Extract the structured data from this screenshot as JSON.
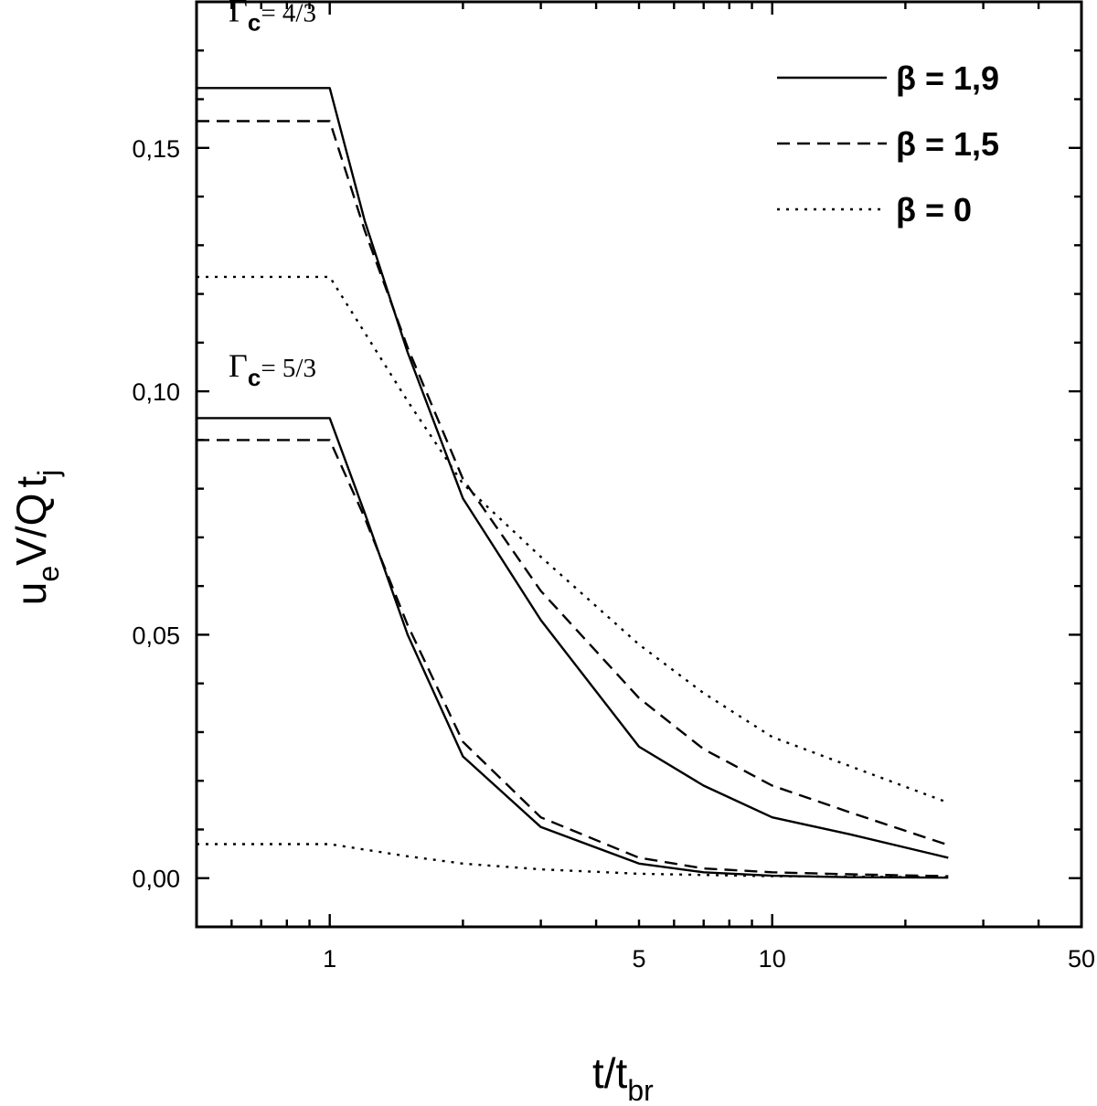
{
  "chart_data": {
    "type": "line",
    "xscale": "log",
    "xlim": [
      0.5,
      50
    ],
    "ylim": [
      -0.01,
      0.18
    ],
    "grid": false,
    "legend_position": "top-right",
    "xlabel": {
      "main": "t/t",
      "sub": "br"
    },
    "ylabel": {
      "p1": "u",
      "s1": "e",
      "p2": "V/Q",
      "p3": "t",
      "s2": "j"
    },
    "x_ticks": [
      {
        "value": 1,
        "label": "1"
      },
      {
        "value": 5,
        "label": "5"
      },
      {
        "value": 10,
        "label": "10"
      },
      {
        "value": 50,
        "label": "50"
      }
    ],
    "y_ticks": [
      {
        "value": 0,
        "label": "0,00"
      },
      {
        "value": 0.05,
        "label": "0,05"
      },
      {
        "value": 0.1,
        "label": "0,10"
      },
      {
        "value": 0.15,
        "label": "0,15"
      }
    ],
    "legend": [
      {
        "label": "β = 1,9",
        "style": "solid"
      },
      {
        "label": "β = 1,5",
        "style": "dashed"
      },
      {
        "label": "β = 0",
        "style": "dotted"
      }
    ],
    "annotations": [
      {
        "gamma": "Γ",
        "sub": "c",
        "value": "= 4/3",
        "at": [
          0.55,
          0.176
        ]
      },
      {
        "gamma": "Γ",
        "sub": "c",
        "value": "= 5/3",
        "at": [
          0.55,
          0.103
        ]
      }
    ],
    "series": [
      {
        "group": "4/3",
        "style": "solid",
        "x": [
          0.5,
          1,
          1.2,
          1.5,
          2,
          3,
          5,
          7,
          10,
          15,
          25
        ],
        "y": [
          0.1623,
          0.1623,
          0.135,
          0.108,
          0.078,
          0.053,
          0.027,
          0.019,
          0.0125,
          0.009,
          0.0042
        ]
      },
      {
        "group": "4/3",
        "style": "dashed",
        "x": [
          0.5,
          1,
          1.2,
          1.5,
          2,
          3,
          5,
          7,
          10,
          15,
          25
        ],
        "y": [
          0.1555,
          0.1555,
          0.133,
          0.109,
          0.082,
          0.059,
          0.037,
          0.0265,
          0.019,
          0.0135,
          0.0068
        ]
      },
      {
        "group": "4/3",
        "style": "dotted",
        "x": [
          0.5,
          1,
          1.5,
          2,
          3,
          5,
          7,
          10,
          15,
          25
        ],
        "y": [
          0.1235,
          0.1235,
          0.098,
          0.081,
          0.066,
          0.048,
          0.038,
          0.029,
          0.023,
          0.0155
        ]
      },
      {
        "group": "5/3",
        "style": "solid",
        "x": [
          0.5,
          1,
          1.2,
          1.5,
          2,
          3,
          5,
          7,
          10,
          15,
          25
        ],
        "y": [
          0.0945,
          0.0945,
          0.075,
          0.05,
          0.025,
          0.0105,
          0.003,
          0.0012,
          0.0005,
          0.0002,
          0.0001
        ]
      },
      {
        "group": "5/3",
        "style": "dashed",
        "x": [
          0.5,
          1,
          1.2,
          1.5,
          2,
          3,
          5,
          7,
          10,
          15,
          25
        ],
        "y": [
          0.09,
          0.09,
          0.074,
          0.052,
          0.028,
          0.0125,
          0.0042,
          0.002,
          0.0012,
          0.0008,
          0.0004
        ]
      },
      {
        "group": "5/3",
        "style": "dotted",
        "x": [
          0.5,
          1,
          1.5,
          2,
          3,
          5,
          10,
          25
        ],
        "y": [
          0.007,
          0.007,
          0.0045,
          0.003,
          0.0018,
          0.0009,
          0.0004,
          0.0002
        ]
      }
    ]
  }
}
